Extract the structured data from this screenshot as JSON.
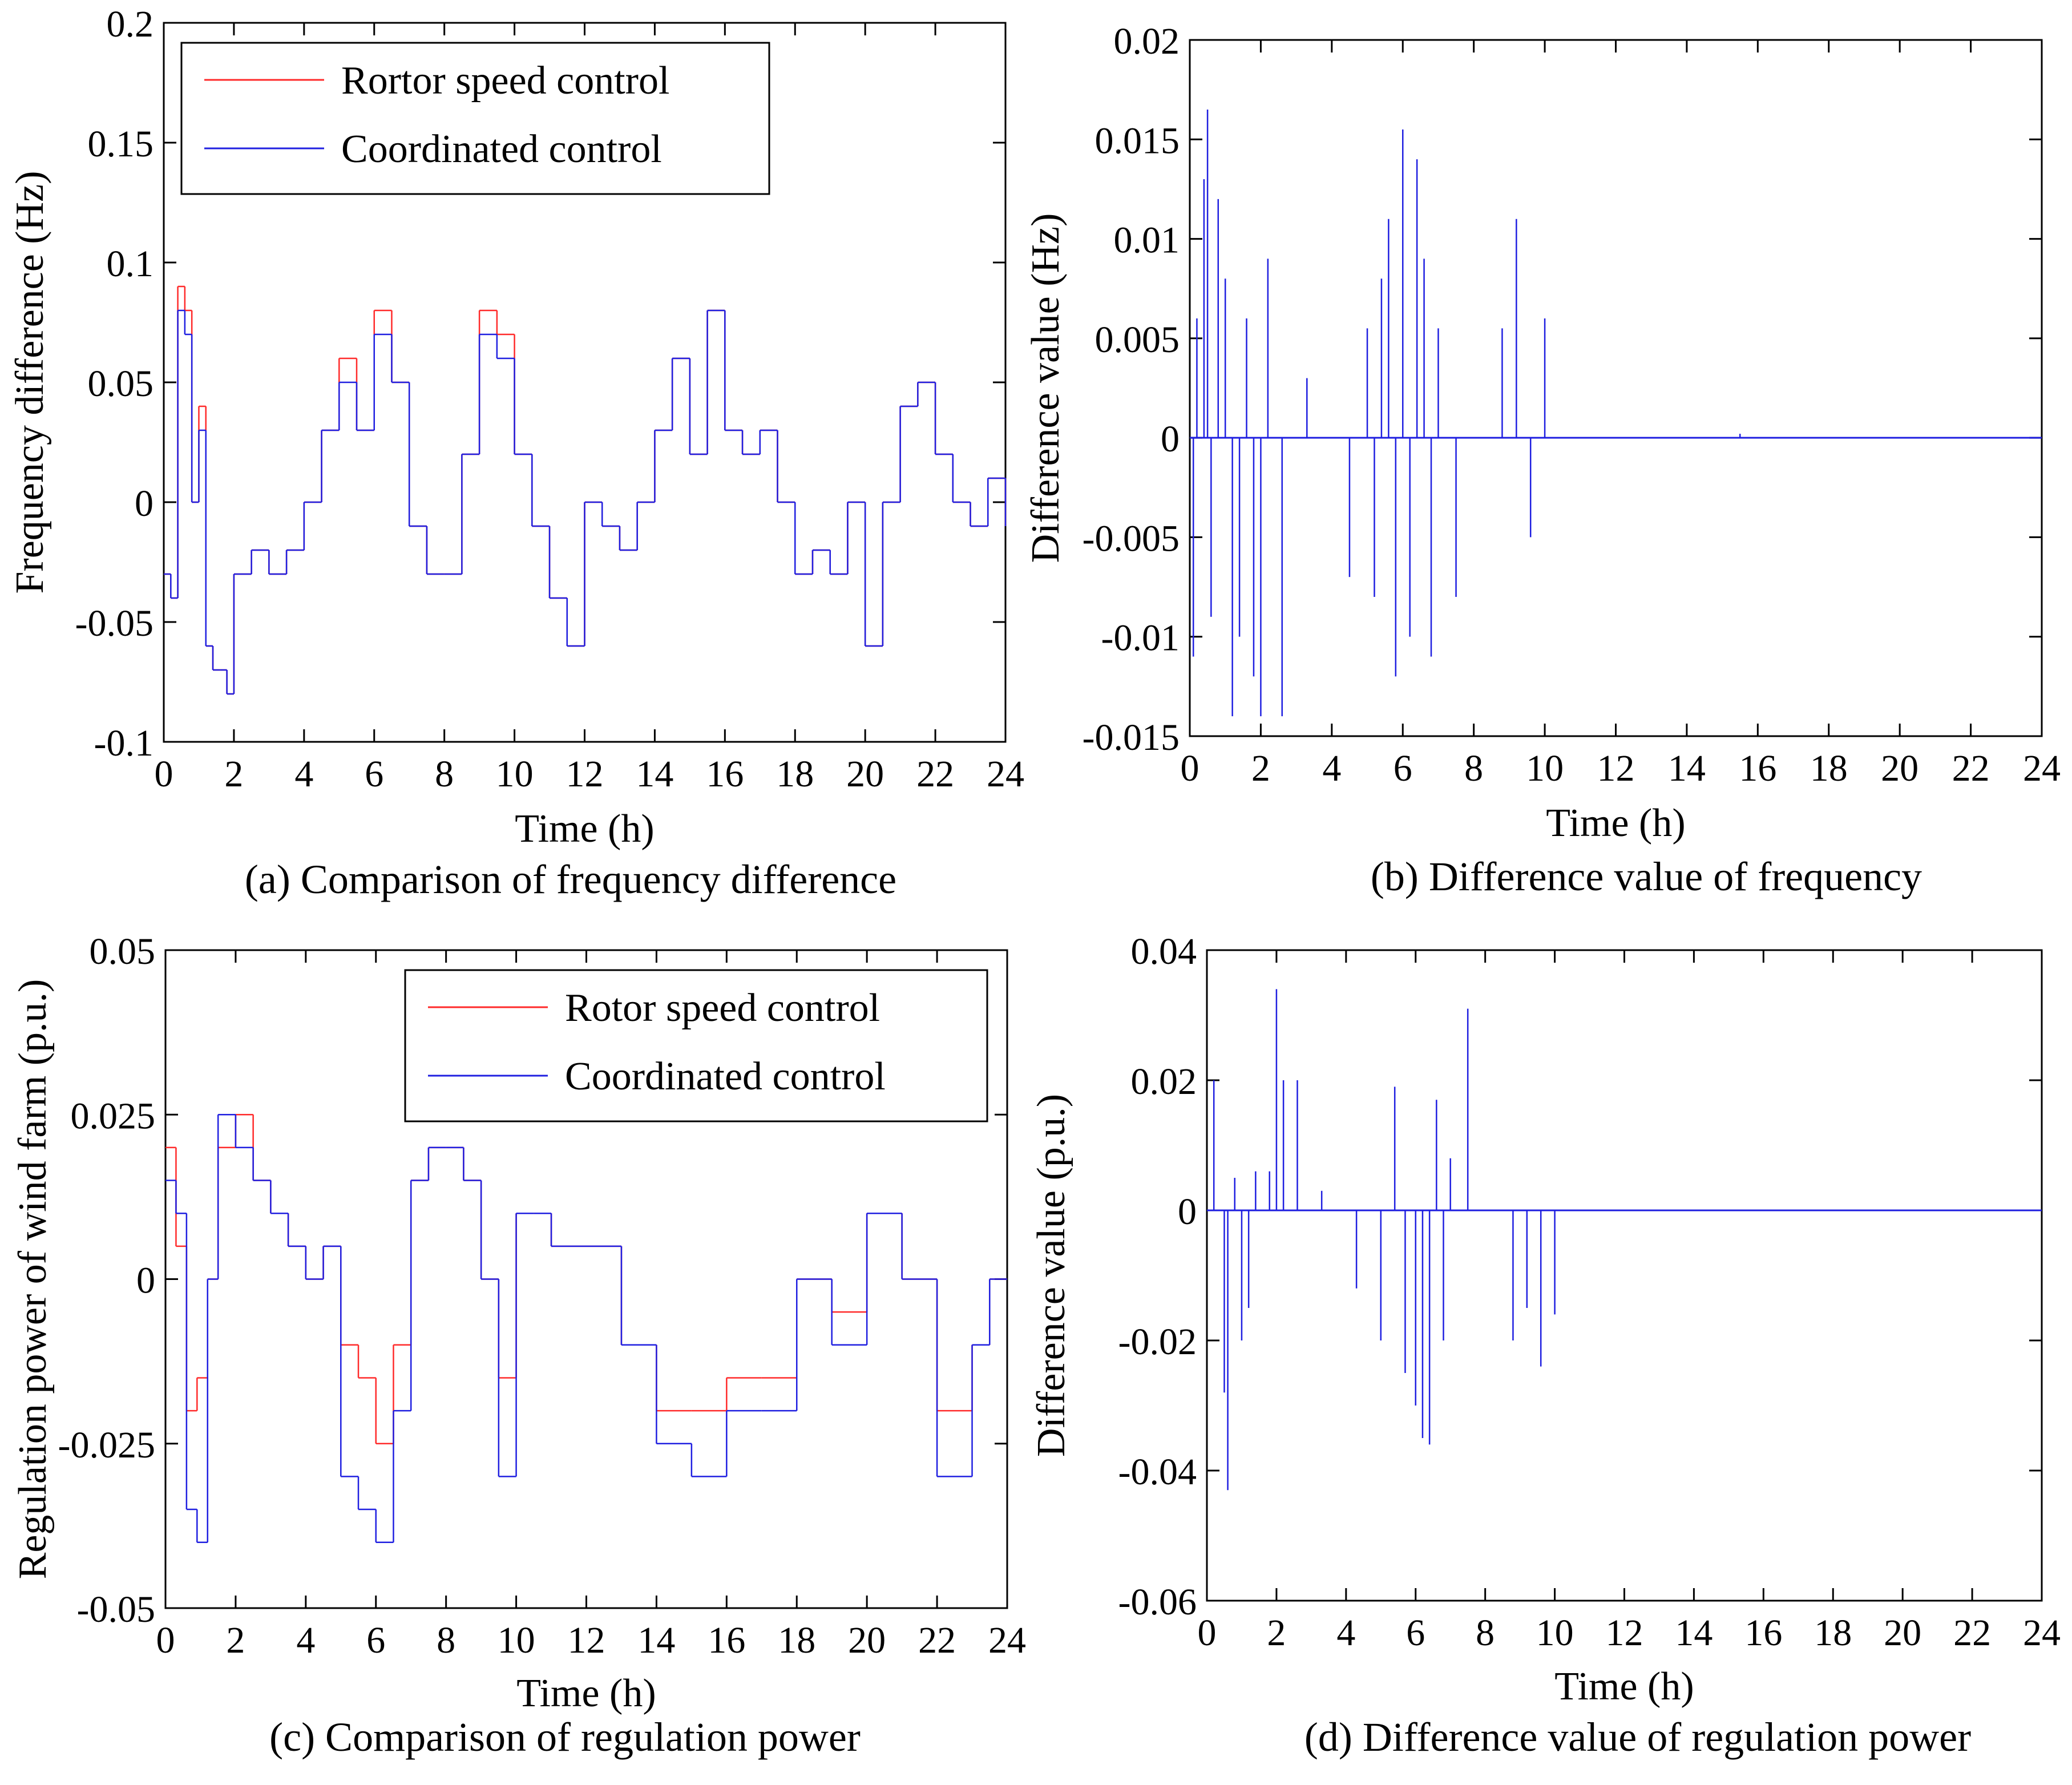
{
  "figure": {
    "panels": [
      {
        "id": "a",
        "caption": "(a)  Comparison of frequency difference"
      },
      {
        "id": "b",
        "caption": "(b)  Difference value of frequency"
      },
      {
        "id": "c",
        "caption": "(c)  Comparison of regulation power"
      },
      {
        "id": "d",
        "caption": "(d)  Difference value of regulation power"
      }
    ]
  },
  "colors": {
    "red_series": "#ff2a2a",
    "blue_series": "#1f1fe0",
    "axis": "#000000"
  },
  "chart_data": [
    {
      "id": "a",
      "type": "line",
      "title": "",
      "xlabel": "Time (h)",
      "ylabel": "Frequency difference (Hz)",
      "xlim": [
        0,
        24
      ],
      "ylim": [
        -0.1,
        0.2
      ],
      "xticks": [
        0,
        2,
        4,
        6,
        8,
        10,
        12,
        14,
        16,
        18,
        20,
        22,
        24
      ],
      "xtick_labels": [
        "0",
        "2",
        "4",
        "6",
        "8",
        "10",
        "12",
        "14",
        "16",
        "18",
        "20",
        "22",
        "24"
      ],
      "yticks": [
        -0.1,
        -0.05,
        0,
        0.05,
        0.1,
        0.15,
        0.2
      ],
      "ytick_labels": [
        "-0.1",
        "-0.05",
        "0",
        "0.05",
        "0.1",
        "0.15",
        "0.2"
      ],
      "legend_position": "top-left",
      "series": [
        {
          "name": "Rortor speed control",
          "color": "#ff2a2a",
          "x": [
            0,
            0.2,
            0.4,
            0.6,
            0.8,
            1.0,
            1.2,
            1.4,
            1.6,
            1.8,
            2.0,
            2.5,
            3.0,
            3.5,
            4.0,
            4.5,
            5.0,
            5.5,
            6.0,
            6.5,
            7.0,
            7.5,
            8.0,
            8.5,
            9.0,
            9.5,
            10.0,
            10.5,
            11.0,
            11.5,
            12.0,
            12.5,
            13.0,
            13.5,
            14.0,
            14.5,
            15.0,
            15.5,
            16.0,
            16.5,
            17.0,
            17.5,
            18.0,
            18.5,
            19.0,
            19.5,
            20.0,
            20.5,
            21.0,
            21.5,
            22.0,
            22.5,
            23.0,
            23.5,
            24.0
          ],
          "y": [
            -0.03,
            -0.04,
            0.09,
            0.08,
            0.0,
            0.04,
            -0.06,
            -0.07,
            -0.07,
            -0.08,
            -0.03,
            -0.02,
            -0.03,
            -0.02,
            0.0,
            0.03,
            0.06,
            0.03,
            0.08,
            0.05,
            -0.01,
            -0.03,
            -0.03,
            0.02,
            0.08,
            0.07,
            0.02,
            -0.01,
            -0.04,
            -0.06,
            0.0,
            -0.01,
            -0.02,
            0.0,
            0.03,
            0.06,
            0.02,
            0.08,
            0.03,
            0.02,
            0.03,
            0.0,
            -0.03,
            -0.02,
            -0.03,
            0.0,
            -0.06,
            0.0,
            0.04,
            0.05,
            0.02,
            0.0,
            -0.01,
            0.01,
            -0.01
          ]
        },
        {
          "name": "Coordinated control",
          "color": "#1f1fe0",
          "x": [
            0,
            0.2,
            0.4,
            0.6,
            0.8,
            1.0,
            1.2,
            1.4,
            1.6,
            1.8,
            2.0,
            2.5,
            3.0,
            3.5,
            4.0,
            4.5,
            5.0,
            5.5,
            6.0,
            6.5,
            7.0,
            7.5,
            8.0,
            8.5,
            9.0,
            9.5,
            10.0,
            10.5,
            11.0,
            11.5,
            12.0,
            12.5,
            13.0,
            13.5,
            14.0,
            14.5,
            15.0,
            15.5,
            16.0,
            16.5,
            17.0,
            17.5,
            18.0,
            18.5,
            19.0,
            19.5,
            20.0,
            20.5,
            21.0,
            21.5,
            22.0,
            22.5,
            23.0,
            23.5,
            24.0
          ],
          "y": [
            -0.03,
            -0.04,
            0.08,
            0.07,
            0.0,
            0.03,
            -0.06,
            -0.07,
            -0.07,
            -0.08,
            -0.03,
            -0.02,
            -0.03,
            -0.02,
            0.0,
            0.03,
            0.05,
            0.03,
            0.07,
            0.05,
            -0.01,
            -0.03,
            -0.03,
            0.02,
            0.07,
            0.06,
            0.02,
            -0.01,
            -0.04,
            -0.06,
            0.0,
            -0.01,
            -0.02,
            0.0,
            0.03,
            0.06,
            0.02,
            0.08,
            0.03,
            0.02,
            0.03,
            0.0,
            -0.03,
            -0.02,
            -0.03,
            0.0,
            -0.06,
            0.0,
            0.04,
            0.05,
            0.02,
            0.0,
            -0.01,
            0.01,
            -0.01
          ]
        }
      ]
    },
    {
      "id": "b",
      "type": "line",
      "title": "",
      "xlabel": "Time (h)",
      "ylabel": "Difference value (Hz)",
      "xlim": [
        0,
        24
      ],
      "ylim": [
        -0.015,
        0.02
      ],
      "xticks": [
        0,
        2,
        4,
        6,
        8,
        10,
        12,
        14,
        16,
        18,
        20,
        22,
        24
      ],
      "xtick_labels": [
        "0",
        "2",
        "4",
        "6",
        "8",
        "10",
        "12",
        "14",
        "16",
        "18",
        "20",
        "22",
        "24"
      ],
      "yticks": [
        -0.015,
        -0.01,
        -0.005,
        0,
        0.005,
        0.01,
        0.015,
        0.02
      ],
      "ytick_labels": [
        "-0.015",
        "-0.01",
        "-0.005",
        "0",
        "0.005",
        "0.01",
        "0.015",
        "0.02"
      ],
      "legend_position": "none",
      "series": [
        {
          "name": "Difference",
          "color": "#1f1fe0",
          "x": [
            0.1,
            0.2,
            0.4,
            0.5,
            0.6,
            0.8,
            1.0,
            1.2,
            1.4,
            1.6,
            1.8,
            2.0,
            2.2,
            2.6,
            3.3,
            4.5,
            5.0,
            5.2,
            5.4,
            5.6,
            5.8,
            6.0,
            6.2,
            6.4,
            6.6,
            6.8,
            7.0,
            7.5,
            8.8,
            9.2,
            9.6,
            10.0,
            15.5
          ],
          "y": [
            -0.011,
            0.006,
            0.013,
            0.0165,
            -0.009,
            0.012,
            0.008,
            -0.014,
            -0.01,
            0.006,
            -0.012,
            -0.014,
            0.009,
            -0.014,
            0.003,
            -0.007,
            0.0055,
            -0.008,
            0.008,
            0.011,
            -0.012,
            0.0155,
            -0.01,
            0.014,
            0.009,
            -0.011,
            0.0055,
            -0.008,
            0.0055,
            0.011,
            -0.005,
            0.006,
            0.0002
          ]
        }
      ]
    },
    {
      "id": "c",
      "type": "line",
      "title": "",
      "xlabel": "Time (h)",
      "ylabel": "Regulation power of wind farm (p.u.)",
      "xlim": [
        0,
        24
      ],
      "ylim": [
        -0.05,
        0.05
      ],
      "xticks": [
        0,
        2,
        4,
        6,
        8,
        10,
        12,
        14,
        16,
        18,
        20,
        22,
        24
      ],
      "xtick_labels": [
        "0",
        "2",
        "4",
        "6",
        "8",
        "10",
        "12",
        "14",
        "16",
        "18",
        "20",
        "22",
        "24"
      ],
      "yticks": [
        -0.05,
        -0.025,
        0,
        0.025,
        0.05
      ],
      "ytick_labels": [
        "-0.05",
        "-0.025",
        "0",
        "0.025",
        "0.05"
      ],
      "legend_position": "top-right",
      "series": [
        {
          "name": "Rotor speed control",
          "color": "#ff2a2a",
          "x": [
            0,
            0.3,
            0.6,
            0.9,
            1.2,
            1.5,
            2.0,
            2.5,
            3.0,
            3.5,
            4.0,
            4.5,
            5.0,
            5.5,
            6.0,
            6.5,
            7.0,
            7.5,
            8.0,
            8.5,
            9.0,
            9.5,
            10.0,
            10.5,
            11.0,
            12.0,
            13.0,
            14.0,
            15.0,
            16.0,
            17.0,
            18.0,
            19.0,
            20.0,
            21.0,
            22.0,
            23.0,
            23.5,
            24.0
          ],
          "y": [
            0.02,
            0.005,
            -0.02,
            -0.015,
            0.0,
            0.02,
            0.025,
            0.015,
            0.01,
            0.005,
            0.0,
            0.005,
            -0.01,
            -0.015,
            -0.025,
            -0.01,
            0.015,
            0.02,
            0.02,
            0.015,
            0.0,
            -0.015,
            0.01,
            0.01,
            0.005,
            0.005,
            -0.01,
            -0.02,
            -0.02,
            -0.015,
            -0.015,
            0.0,
            -0.005,
            0.01,
            0.0,
            -0.02,
            -0.01,
            0.0,
            0.0
          ]
        },
        {
          "name": "Coordinated control",
          "color": "#1f1fe0",
          "x": [
            0,
            0.3,
            0.6,
            0.9,
            1.2,
            1.5,
            2.0,
            2.5,
            3.0,
            3.5,
            4.0,
            4.5,
            5.0,
            5.5,
            6.0,
            6.5,
            7.0,
            7.5,
            8.0,
            8.5,
            9.0,
            9.5,
            10.0,
            10.5,
            11.0,
            12.0,
            13.0,
            14.0,
            15.0,
            16.0,
            17.0,
            18.0,
            19.0,
            20.0,
            21.0,
            22.0,
            23.0,
            23.5,
            24.0
          ],
          "y": [
            0.015,
            0.01,
            -0.035,
            -0.04,
            0.0,
            0.025,
            0.02,
            0.015,
            0.01,
            0.005,
            0.0,
            0.005,
            -0.03,
            -0.035,
            -0.04,
            -0.02,
            0.015,
            0.02,
            0.02,
            0.015,
            0.0,
            -0.03,
            0.01,
            0.01,
            0.005,
            0.005,
            -0.01,
            -0.025,
            -0.03,
            -0.02,
            -0.02,
            0.0,
            -0.01,
            0.01,
            0.0,
            -0.03,
            -0.01,
            0.0,
            0.0
          ]
        }
      ]
    },
    {
      "id": "d",
      "type": "line",
      "title": "",
      "xlabel": "Time (h)",
      "ylabel": "Difference value (p.u.)",
      "xlim": [
        0,
        24
      ],
      "ylim": [
        -0.06,
        0.04
      ],
      "xticks": [
        0,
        2,
        4,
        6,
        8,
        10,
        12,
        14,
        16,
        18,
        20,
        22,
        24
      ],
      "xtick_labels": [
        "0",
        "2",
        "4",
        "6",
        "8",
        "10",
        "12",
        "14",
        "16",
        "18",
        "20",
        "22",
        "24"
      ],
      "yticks": [
        -0.06,
        -0.04,
        -0.02,
        0,
        0.02,
        0.04
      ],
      "ytick_labels": [
        "-0.06",
        "-0.04",
        "-0.02",
        "0",
        "0.02",
        "0.04"
      ],
      "legend_position": "none",
      "series": [
        {
          "name": "Difference",
          "color": "#1f1fe0",
          "x": [
            0.2,
            0.5,
            0.6,
            0.8,
            1.0,
            1.2,
            1.4,
            1.8,
            2.0,
            2.2,
            2.6,
            3.3,
            4.3,
            5.0,
            5.4,
            5.7,
            6.0,
            6.2,
            6.4,
            6.6,
            6.8,
            7.0,
            7.5,
            8.8,
            9.2,
            9.6,
            10.0
          ],
          "y": [
            0.02,
            -0.028,
            -0.043,
            0.005,
            -0.02,
            -0.015,
            0.006,
            0.006,
            0.034,
            0.02,
            0.02,
            0.003,
            -0.012,
            -0.02,
            0.019,
            -0.025,
            -0.03,
            -0.035,
            -0.036,
            0.017,
            -0.02,
            0.008,
            0.031,
            -0.02,
            -0.015,
            -0.024,
            -0.016
          ]
        }
      ]
    }
  ]
}
